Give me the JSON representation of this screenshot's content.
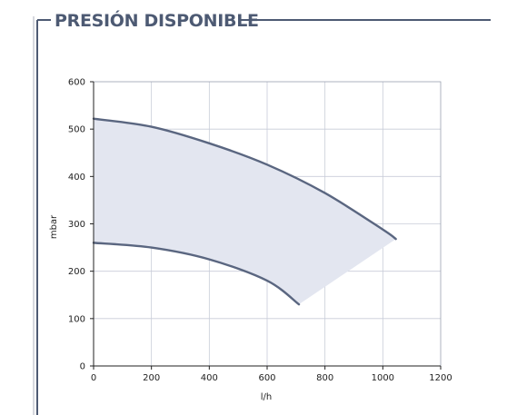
{
  "panel": {
    "title": "PRESIÓN DISPONIBLE",
    "accent_color": "#4d5a73",
    "left_rule_color": "#c9ccd3"
  },
  "chart_data": {
    "type": "line",
    "title": "",
    "xlabel": "l/h",
    "ylabel": "mbar",
    "xlim": [
      0,
      1200
    ],
    "ylim": [
      0,
      600
    ],
    "x_ticks": [
      0,
      200,
      400,
      600,
      800,
      1000,
      1200
    ],
    "y_ticks": [
      0,
      100,
      200,
      300,
      400,
      500,
      600
    ],
    "grid": true,
    "legend": "none",
    "series": [
      {
        "x": [
          0,
          200,
          400,
          600,
          800,
          1000,
          1045
        ],
        "y": [
          522,
          505,
          470,
          425,
          365,
          288,
          268
        ],
        "color": "#5a6680"
      },
      {
        "x": [
          0,
          200,
          400,
          600,
          710
        ],
        "y": [
          260,
          250,
          225,
          180,
          130
        ],
        "color": "#5a6680"
      }
    ],
    "fill_between": {
      "color": "#e3e6f0",
      "description_series": [
        0,
        1
      ]
    }
  }
}
